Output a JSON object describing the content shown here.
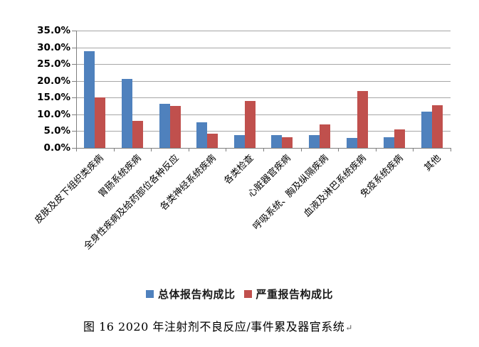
{
  "chart_data": {
    "type": "bar",
    "title": "",
    "categories": [
      "皮肤及皮下组织类疾病",
      "胃肠系统疾病",
      "全身性疾病及给药部位各种反应",
      "各类神经系统疾病",
      "各类检查",
      "心脏器官疾病",
      "呼吸系统、胸及纵隔疾病",
      "血液及淋巴系统疾病",
      "免疫系统疾病",
      "其他"
    ],
    "series": [
      {
        "name": "总体报告构成比",
        "color": "#4F81BD",
        "values": [
          28.8,
          20.6,
          13.2,
          7.6,
          3.8,
          3.8,
          3.8,
          3.0,
          3.2,
          10.9
        ]
      },
      {
        "name": "严重报告构成比",
        "color": "#C0504D",
        "values": [
          15.1,
          8.0,
          12.5,
          4.2,
          14.0,
          3.2,
          6.9,
          16.9,
          5.6,
          12.8
        ]
      }
    ],
    "xlabel": "",
    "ylabel": "",
    "ylim": [
      0,
      35
    ],
    "ytick_step": 5,
    "ytick_labels": [
      "35.0%",
      "30.0%",
      "25.0%",
      "20.0%",
      "15.0%",
      "10.0%",
      "5.0%",
      "0.0%"
    ],
    "grid": "horizontal",
    "legend_position": "bottom"
  },
  "caption": {
    "text": "图 16  2020 年注射剂不良反应/事件累及器官系统",
    "paragraph_mark": "↵"
  },
  "colors": {
    "bar_overall": "#4F81BD",
    "bar_serious": "#C0504D",
    "gridline": "#A6A6A6",
    "axis": "#7F7F7F",
    "background": "#FFFFFF",
    "text": "#000000"
  }
}
